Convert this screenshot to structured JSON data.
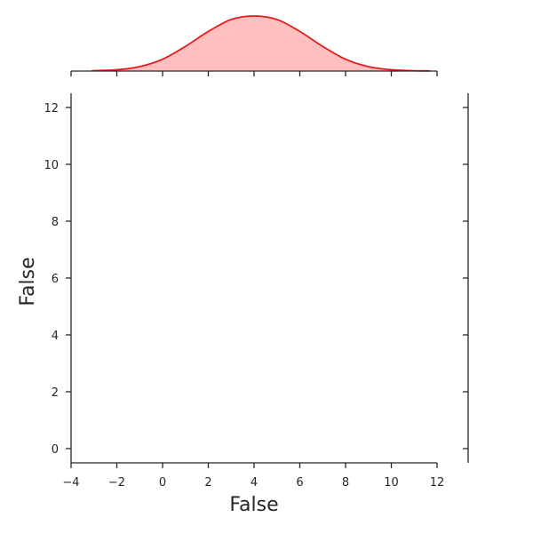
{
  "chart_data": [
    {
      "panel": "marginal-top",
      "type": "area",
      "title": "",
      "xlim": [
        -4,
        12
      ],
      "x": [
        -3.1,
        -2,
        -1,
        0,
        1,
        2,
        3,
        4,
        5,
        6,
        7,
        8,
        9,
        10,
        11,
        11.7
      ],
      "y": [
        0.003,
        0.011,
        0.038,
        0.101,
        0.211,
        0.339,
        0.441,
        0.471,
        0.441,
        0.339,
        0.211,
        0.101,
        0.038,
        0.011,
        0.003,
        0.001
      ],
      "color": "#e31a1c",
      "fill": "#ffbfbf"
    },
    {
      "panel": "joint",
      "type": "scatter",
      "xlabel": "False",
      "ylabel": "False",
      "xlim": [
        -4,
        12
      ],
      "ylim": [
        -0.5,
        12.5
      ],
      "xticks": [
        -4,
        -2,
        0,
        2,
        4,
        6,
        8,
        10,
        12
      ],
      "xticklabels": [
        "−4",
        "−2",
        "0",
        "2",
        "4",
        "6",
        "8",
        "10",
        "12"
      ],
      "yticks": [
        0,
        2,
        4,
        6,
        8,
        10,
        12
      ],
      "yticklabels": [
        "0",
        "2",
        "4",
        "6",
        "8",
        "10",
        "12"
      ],
      "grid": false,
      "points": []
    },
    {
      "panel": "marginal-right",
      "type": "area",
      "ylim": [
        -0.5,
        12.5
      ],
      "values": []
    }
  ]
}
